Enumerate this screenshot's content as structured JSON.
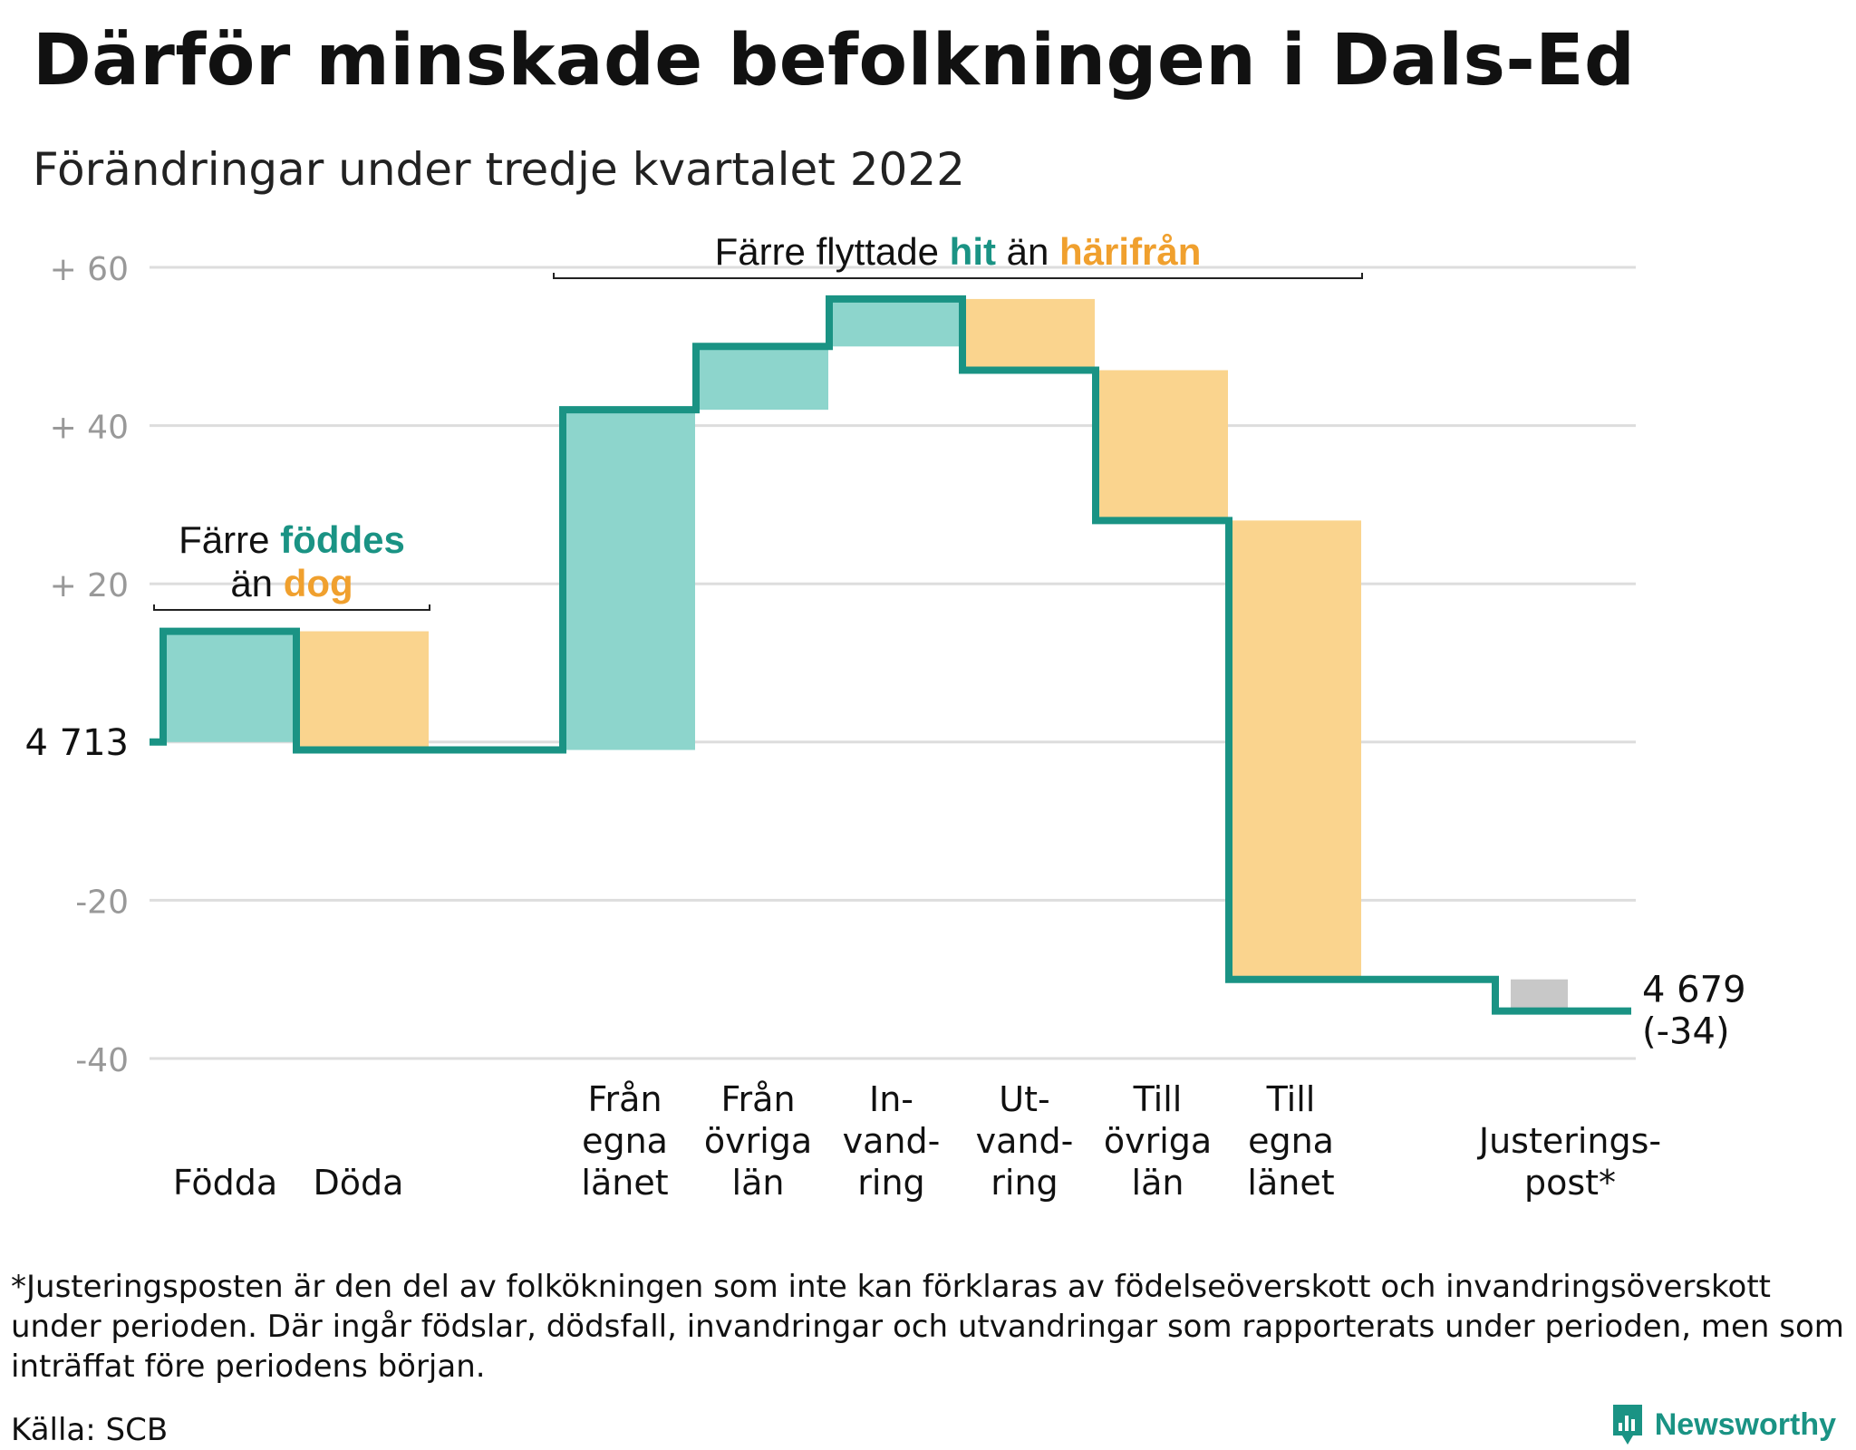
{
  "title": "Därför minskade befolkningen i Dals-Ed",
  "subtitle": "Förändringar under tredje kvartalet 2022",
  "chart_data": {
    "type": "waterfall",
    "start": {
      "value": 4713,
      "label": "4 713"
    },
    "end": {
      "value": 4679,
      "label": "4 679",
      "change_label": "(-34)"
    },
    "y_axis": {
      "range": [
        -40,
        60
      ],
      "ticks": [
        {
          "value": 60,
          "label": "+ 60"
        },
        {
          "value": 40,
          "label": "+ 40"
        },
        {
          "value": 20,
          "label": "+ 20"
        },
        {
          "value": 0,
          "label": ""
        },
        {
          "value": -20,
          "label": "-20"
        },
        {
          "value": -40,
          "label": "-40"
        }
      ],
      "grid": true
    },
    "steps": [
      {
        "label": [
          "Födda"
        ],
        "delta": 14,
        "color": "#8dd5cc"
      },
      {
        "label": [
          "Döda"
        ],
        "delta": -15,
        "color": "#fad48e"
      },
      {
        "label": [],
        "delta": 0,
        "color": "none"
      },
      {
        "label": [
          "Från",
          "egna",
          "länet"
        ],
        "delta": 43,
        "color": "#8dd5cc"
      },
      {
        "label": [
          "Från",
          "övriga",
          "län"
        ],
        "delta": 8,
        "color": "#8dd5cc"
      },
      {
        "label": [
          "In-",
          "vand-",
          "ring"
        ],
        "delta": 6,
        "color": "#8dd5cc"
      },
      {
        "label": [
          "Ut-",
          "vand-",
          "ring"
        ],
        "delta": -9,
        "color": "#fad48e"
      },
      {
        "label": [
          "Till",
          "övriga",
          "län"
        ],
        "delta": -19,
        "color": "#fad48e"
      },
      {
        "label": [
          "Till",
          "egna",
          "länet"
        ],
        "delta": -58,
        "color": "#fad48e"
      },
      {
        "label": [],
        "delta": 0,
        "color": "none"
      },
      {
        "label": [
          "Justerings-",
          "post*"
        ],
        "delta": -4,
        "color": "#c8c8c8"
      }
    ],
    "annotations": [
      {
        "from_step": 0,
        "to_step": 1,
        "parts": [
          [
            "Färre ",
            "födda-text"
          ],
          [
            "föddes",
            "teal"
          ]
        ],
        "parts2": [
          [
            "än ",
            "plain"
          ],
          [
            "dog",
            "orange"
          ]
        ]
      },
      {
        "from_step": 3,
        "to_step": 8,
        "parts": [
          [
            "Färre flyttade ",
            "plain"
          ],
          [
            "hit",
            "teal"
          ],
          [
            " än ",
            "plain"
          ],
          [
            "härifrån",
            "orange"
          ]
        ]
      }
    ],
    "colors": {
      "line": "#1a9384",
      "teal_text": "#1a9384",
      "orange_text": "#f0a02e",
      "grid": "#dddddd",
      "tick": "#999999"
    }
  },
  "footnote": "*Justeringsposten är den del av folkökningen som inte kan förklaras av födelseöverskott och invandringsöverskott under perioden. Där ingår födslar, dödsfall, invandringar och utvandringar som rapporterats under perioden, men som inträffat före periodens början.",
  "source": "Källa: SCB",
  "brand": {
    "name": "Newsworthy",
    "icon": "newsworthy-logo-icon"
  }
}
